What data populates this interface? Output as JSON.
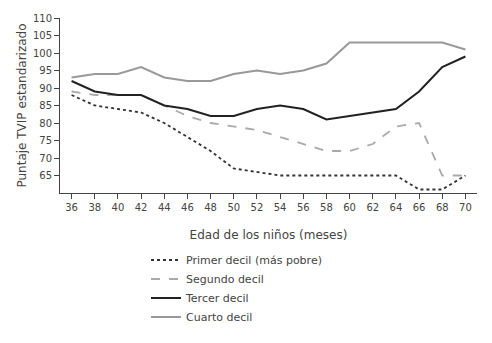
{
  "chart_data": {
    "type": "line",
    "x": [
      36,
      38,
      40,
      42,
      44,
      46,
      48,
      50,
      52,
      54,
      56,
      58,
      60,
      62,
      64,
      66,
      68,
      70
    ],
    "series": [
      {
        "name": "Primer decil (más pobre)",
        "color": "#333333",
        "line_style": "dotted",
        "values": [
          88,
          85,
          84,
          83,
          80,
          76,
          72,
          67,
          66,
          65,
          65,
          65,
          65,
          65,
          65,
          61,
          61,
          65
        ]
      },
      {
        "name": "Segundo decil",
        "color": "#aaaaaa",
        "line_style": "dashed",
        "values": [
          89,
          88,
          88,
          88,
          85,
          82,
          80,
          79,
          78,
          76,
          74,
          72,
          72,
          74,
          79,
          80,
          65,
          65
        ]
      },
      {
        "name": "Tercer decil",
        "color": "#222222",
        "line_style": "solid",
        "values": [
          92,
          89,
          88,
          88,
          85,
          84,
          82,
          82,
          84,
          85,
          84,
          81,
          82,
          83,
          84,
          89,
          96,
          99
        ]
      },
      {
        "name": "Cuarto decil",
        "color": "#999999",
        "line_style": "solid",
        "values": [
          93,
          94,
          94,
          96,
          93,
          92,
          92,
          94,
          95,
          94,
          95,
          97,
          103,
          103,
          103,
          103,
          103,
          101
        ]
      }
    ],
    "xlabel": "Edad de los niños (meses)",
    "ylabel": "Puntaje TVIP estandarizado",
    "xlim": [
      35,
      71
    ],
    "xticks": [
      36,
      38,
      40,
      42,
      44,
      46,
      48,
      50,
      52,
      54,
      56,
      58,
      60,
      62,
      64,
      66,
      68,
      70
    ],
    "ylim": [
      60,
      110
    ],
    "yticks": [
      65,
      70,
      75,
      80,
      85,
      90,
      95,
      100,
      105,
      110
    ],
    "grid": false,
    "legend": "bottom"
  }
}
